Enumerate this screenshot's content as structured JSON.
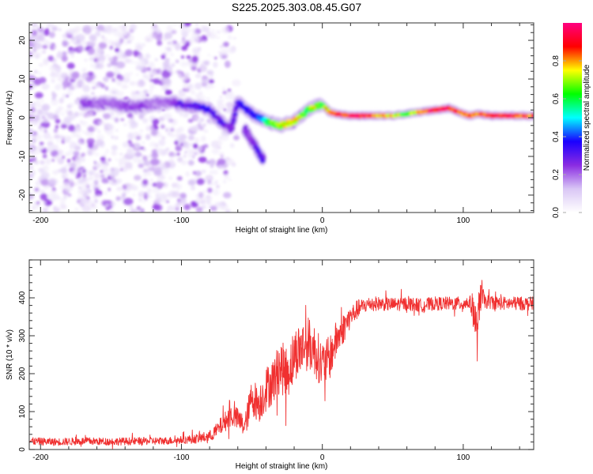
{
  "title": "S225.2025.303.08.45.G07",
  "chart_data": [
    {
      "type": "heatmap",
      "name": "spectrogram",
      "xlabel": "Height of straight line (km)",
      "ylabel": "Frequency (Hz)",
      "xlim": [
        -208,
        150
      ],
      "ylim": [
        -24.5,
        24.5
      ],
      "xticks": [
        -200,
        -100,
        0,
        100
      ],
      "xtick_labels": [
        "-200",
        "-100",
        "0",
        "100"
      ],
      "yticks": [
        -20,
        -10,
        0,
        10,
        20
      ],
      "ytick_labels": [
        "-20",
        "-10",
        "0",
        "10",
        "20"
      ],
      "colorbar": {
        "label": "Normalized spectral amplitude",
        "range": [
          0,
          1
        ],
        "ticks": [
          0.0,
          0.2,
          0.4,
          0.6,
          0.8
        ],
        "tick_labels": [
          "0.0",
          "0.2",
          "0.4",
          "0.6",
          "0.8"
        ],
        "colormap": [
          "#ffffff",
          "#d9c6f5",
          "#8a2be2",
          "#1a00ff",
          "#00ffff",
          "#00ff00",
          "#ffff00",
          "#ff0000",
          "#ff0080"
        ]
      },
      "ridge": {
        "description": "main signal ridge (frequency vs height), amplitude 0-1",
        "x": [
          -170,
          -160,
          -150,
          -140,
          -130,
          -120,
          -110,
          -100,
          -90,
          -80,
          -75,
          -70,
          -65,
          -60,
          -55,
          -50,
          -45,
          -40,
          -35,
          -30,
          -25,
          -20,
          -15,
          -10,
          -5,
          0,
          5,
          10,
          20,
          30,
          40,
          50,
          60,
          70,
          80,
          90,
          100,
          105,
          110,
          120,
          130,
          140,
          150
        ],
        "y": [
          4,
          3.5,
          4,
          3,
          3,
          3.5,
          4,
          3.5,
          3,
          2,
          0,
          -1.5,
          -3,
          4,
          2.5,
          1,
          0,
          -1,
          -1.5,
          -2,
          -1.5,
          -1,
          0.5,
          2,
          3,
          3.5,
          1.5,
          1,
          0.5,
          0.5,
          0.5,
          0.5,
          1,
          1.5,
          2,
          2.5,
          1,
          0.5,
          1,
          0.5,
          0.5,
          0.5,
          0.5
        ],
        "amplitude": [
          0.25,
          0.2,
          0.2,
          0.22,
          0.25,
          0.18,
          0.2,
          0.3,
          0.3,
          0.35,
          0.3,
          0.3,
          0.25,
          0.3,
          0.35,
          0.35,
          0.4,
          0.55,
          0.65,
          0.7,
          0.75,
          0.8,
          0.7,
          0.6,
          0.75,
          0.6,
          0.85,
          0.9,
          0.95,
          0.95,
          0.8,
          0.8,
          0.6,
          0.85,
          0.95,
          0.95,
          0.85,
          0.9,
          0.8,
          0.95,
          0.95,
          0.9,
          0.85
        ]
      },
      "branch": {
        "description": "secondary descending branch",
        "x": [
          -55,
          -50,
          -45,
          -42
        ],
        "y": [
          -3,
          -6,
          -9,
          -11
        ],
        "amplitude": [
          0.25,
          0.25,
          0.3,
          0.3
        ]
      },
      "noise_extent_x": [
        -208,
        -65
      ]
    },
    {
      "type": "line",
      "name": "snr",
      "xlabel": "Height of straight line (km)",
      "ylabel": "SNR (10 * v/v)",
      "xlim": [
        -208,
        150
      ],
      "ylim": [
        0,
        500
      ],
      "xticks": [
        -200,
        -100,
        0,
        100
      ],
      "xtick_labels": [
        "-200",
        "-100",
        "0",
        "100"
      ],
      "yticks": [
        0,
        100,
        200,
        300,
        400
      ],
      "ytick_labels": [
        "0",
        "100",
        "200",
        "300",
        "400"
      ],
      "color": "#f03030",
      "series": [
        {
          "name": "SNR",
          "x": [
            -208,
            -190,
            -170,
            -150,
            -130,
            -110,
            -100,
            -90,
            -80,
            -75,
            -70,
            -65,
            -60,
            -55,
            -50,
            -45,
            -40,
            -35,
            -30,
            -25,
            -20,
            -15,
            -10,
            -5,
            0,
            5,
            10,
            15,
            20,
            25,
            30,
            35,
            40,
            50,
            60,
            70,
            80,
            90,
            100,
            105,
            108,
            110,
            112,
            115,
            120,
            130,
            140,
            150
          ],
          "y": [
            22,
            20,
            22,
            21,
            22,
            23,
            25,
            28,
            35,
            50,
            70,
            90,
            80,
            60,
            140,
            120,
            160,
            180,
            220,
            200,
            250,
            270,
            280,
            260,
            220,
            240,
            290,
            320,
            350,
            370,
            380,
            385,
            385,
            382,
            385,
            380,
            385,
            385,
            385,
            388,
            360,
            290,
            420,
            390,
            388,
            385,
            385,
            385
          ],
          "noise_amplitude": [
            10,
            10,
            10,
            10,
            10,
            10,
            10,
            12,
            15,
            20,
            25,
            30,
            30,
            30,
            50,
            50,
            60,
            60,
            70,
            70,
            70,
            70,
            70,
            70,
            60,
            60,
            50,
            40,
            30,
            25,
            20,
            20,
            18,
            18,
            18,
            18,
            18,
            18,
            18,
            18,
            60,
            60,
            60,
            18,
            18,
            18,
            18,
            18
          ]
        }
      ]
    }
  ]
}
